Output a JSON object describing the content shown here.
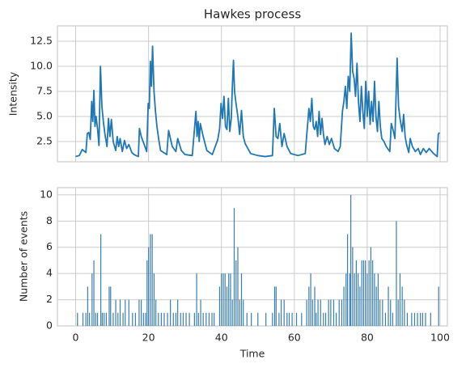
{
  "chart_data": [
    {
      "type": "line",
      "title": "Hawkes process",
      "ylabel": "Intensity",
      "color": "#1f77b4",
      "grid": true,
      "show_xtick_labels": false,
      "xlim": [
        -5,
        102
      ],
      "ylim": [
        0.48,
        14.03
      ],
      "xticks": [
        0,
        20,
        40,
        60,
        80,
        100
      ],
      "yticks": [
        2.5,
        {
          "value": 5,
          "label": "5.0"
        },
        7.5,
        {
          "value": 10,
          "label": "10.0"
        },
        12.5
      ],
      "x": [
        0,
        1,
        1.8,
        2.8,
        3.2,
        3.6,
        4,
        4.4,
        4.7,
        5,
        5.3,
        5.6,
        6,
        6.4,
        6.8,
        7.2,
        7.6,
        8,
        8.6,
        9,
        9.4,
        9.8,
        10.3,
        11,
        11.4,
        11.8,
        12.2,
        12.8,
        13.4,
        14,
        14.6,
        15.4,
        16,
        17.2,
        17.5,
        18,
        19.5,
        19.9,
        20.2,
        20.5,
        20.8,
        21.1,
        21.5,
        21.9,
        22.3,
        22.8,
        23.3,
        25,
        25.5,
        26.5,
        27.5,
        28,
        29,
        30,
        32,
        33,
        33.3,
        33.6,
        33.9,
        34.2,
        35,
        36,
        37.5,
        39,
        39.5,
        39.9,
        40.3,
        40.7,
        41.1,
        41.5,
        41.9,
        42.3,
        42.7,
        43,
        43.3,
        43.6,
        44,
        44.5,
        45,
        45.5,
        46,
        46.5,
        48,
        50,
        52,
        54,
        54.5,
        55,
        55.5,
        56,
        56.6,
        57.2,
        58,
        59,
        61,
        63,
        64,
        64.4,
        64.8,
        65.2,
        65.6,
        66,
        66.4,
        66.8,
        67.2,
        67.6,
        68,
        68.4,
        69,
        69.6,
        70.2,
        71,
        72,
        72.6,
        73.2,
        73.6,
        74,
        74.4,
        74.8,
        75.2,
        75.6,
        76,
        76.4,
        76.8,
        77.2,
        77.6,
        78,
        78.4,
        78.8,
        79.2,
        79.6,
        80,
        80.4,
        80.8,
        81.2,
        81.6,
        82,
        82.4,
        82.8,
        83.2,
        83.6,
        84,
        84.6,
        85.2,
        86.2,
        86.6,
        87.2,
        87.6,
        88.2,
        88.6,
        89,
        89.6,
        90,
        90.4,
        90.8,
        91.4,
        91.8,
        92.4,
        93.2,
        94,
        94.6,
        95.4,
        96.2,
        97,
        98.2,
        99.2,
        99.5,
        99.8
      ],
      "values": [
        1.0,
        1.1,
        1.7,
        1.4,
        3.3,
        3.4,
        2.7,
        6.5,
        4.5,
        7.6,
        4.0,
        5.0,
        3.8,
        2.1,
        10.0,
        6.0,
        4.5,
        3.3,
        2.0,
        4.8,
        3.0,
        4.7,
        2.5,
        1.6,
        3.0,
        2.0,
        2.8,
        1.5,
        2.6,
        1.8,
        2.2,
        1.4,
        1.2,
        1.0,
        3.8,
        3.0,
        1.5,
        6.3,
        5.8,
        10.5,
        8.0,
        12.0,
        7.5,
        5.5,
        4.0,
        2.7,
        1.6,
        1.2,
        3.6,
        2.0,
        1.5,
        2.8,
        1.6,
        1.2,
        1.1,
        5.5,
        3.0,
        4.5,
        2.5,
        4.3,
        3.0,
        1.6,
        1.2,
        2.7,
        3.8,
        6.3,
        4.8,
        7.0,
        4.0,
        3.7,
        6.8,
        3.5,
        4.8,
        8.0,
        10.6,
        7.5,
        6.3,
        5.0,
        3.2,
        5.6,
        3.0,
        2.3,
        1.3,
        1.1,
        1.0,
        1.1,
        5.8,
        3.0,
        2.8,
        4.3,
        2.0,
        3.3,
        2.0,
        1.3,
        1.1,
        1.3,
        5.8,
        4.5,
        6.8,
        4.0,
        3.7,
        4.5,
        3.0,
        5.5,
        3.2,
        4.8,
        3.2,
        2.2,
        3.0,
        2.2,
        2.8,
        1.8,
        1.5,
        2.0,
        5.5,
        6.5,
        8.0,
        5.8,
        9.0,
        7.5,
        13.3,
        9.5,
        8.8,
        7.0,
        10.3,
        6.5,
        4.5,
        8.0,
        5.5,
        3.8,
        8.5,
        5.0,
        7.5,
        4.2,
        6.5,
        4.5,
        8.5,
        5.0,
        3.5,
        6.5,
        4.0,
        2.8,
        2.5,
        2.0,
        1.5,
        4.3,
        3.5,
        2.8,
        10.8,
        6.0,
        4.8,
        3.5,
        5.2,
        3.0,
        2.2,
        1.4,
        2.8,
        2.0,
        1.5,
        1.8,
        1.2,
        1.8,
        1.4,
        1.8,
        1.3,
        1.0,
        3.2,
        3.4
      ]
    },
    {
      "type": "bar",
      "xlabel": "Time",
      "ylabel": "Number of events",
      "color": "#3a7fb0",
      "grid": true,
      "xlim": [
        -5,
        102
      ],
      "ylim": [
        0,
        10.55
      ],
      "xticks": [
        0,
        20,
        40,
        60,
        80,
        100
      ],
      "yticks": [
        0,
        2,
        4,
        6,
        8,
        10
      ],
      "x": [
        0.5,
        2,
        2.8,
        3.3,
        3.8,
        4.5,
        5,
        5.5,
        6,
        6.9,
        7.3,
        7.8,
        8.4,
        9.2,
        9.6,
        10.3,
        11,
        11.6,
        12.2,
        13,
        13.6,
        14.6,
        15.6,
        16.4,
        17.4,
        18,
        18.6,
        19.2,
        19.6,
        20,
        20.5,
        21,
        21.5,
        22,
        22.7,
        23.5,
        24.3,
        25.2,
        26,
        26.8,
        27.5,
        28,
        28.8,
        29.5,
        30.3,
        31.2,
        32.6,
        33.2,
        33.7,
        34.3,
        35,
        35.8,
        36.6,
        37.4,
        38,
        39.5,
        40,
        40.5,
        41,
        41.5,
        42,
        42.5,
        43,
        43.5,
        44,
        44.5,
        45,
        45.5,
        46,
        47,
        48.2,
        50,
        52.2,
        54,
        54.6,
        55,
        55.8,
        56.4,
        57.2,
        58,
        58.6,
        59.4,
        60.6,
        62,
        63.4,
        64,
        64.5,
        65,
        65.6,
        66,
        66.5,
        67.2,
        68,
        68.6,
        69.4,
        70,
        70.8,
        71.5,
        72.3,
        73,
        73.6,
        74.2,
        74.6,
        75.2,
        75.5,
        76,
        76.5,
        77,
        77.5,
        78,
        78.5,
        79,
        79.5,
        80,
        80.5,
        81,
        81.5,
        82,
        82.5,
        83,
        83.5,
        84.2,
        85,
        85.8,
        86.4,
        87,
        88,
        88.5,
        89,
        89.6,
        90.2,
        91,
        92.2,
        93,
        93.8,
        94.6,
        95.2,
        96,
        97.4,
        99.6
      ],
      "values": [
        1,
        1,
        1,
        3,
        1,
        4,
        5,
        1,
        1,
        7,
        1,
        1,
        1,
        3,
        3,
        1,
        2,
        1,
        2,
        1,
        2,
        2,
        1,
        1,
        2,
        2,
        1,
        1,
        5,
        6,
        7,
        7,
        4,
        2,
        1,
        1,
        1,
        1,
        2,
        1,
        1,
        2,
        1,
        1,
        1,
        1,
        1,
        4,
        1,
        2,
        1,
        1,
        1,
        1,
        1,
        3,
        4,
        4,
        4,
        3,
        4,
        4,
        2,
        9,
        5,
        6,
        2,
        4,
        2,
        1,
        1,
        1,
        1,
        1,
        3,
        3,
        1,
        2,
        2,
        1,
        1,
        1,
        1,
        1,
        2,
        3,
        4,
        2,
        3,
        1,
        2,
        2,
        1,
        1,
        2,
        2,
        2,
        1,
        2,
        2,
        3,
        4,
        7,
        4,
        10,
        6,
        4,
        5,
        4,
        3,
        5,
        5,
        5,
        4,
        5,
        6,
        5,
        4,
        3,
        4,
        2,
        2,
        1,
        3,
        2,
        1,
        8,
        2,
        4,
        3,
        2,
        1,
        1,
        1,
        1,
        1,
        1,
        1,
        1,
        3
      ]
    }
  ]
}
